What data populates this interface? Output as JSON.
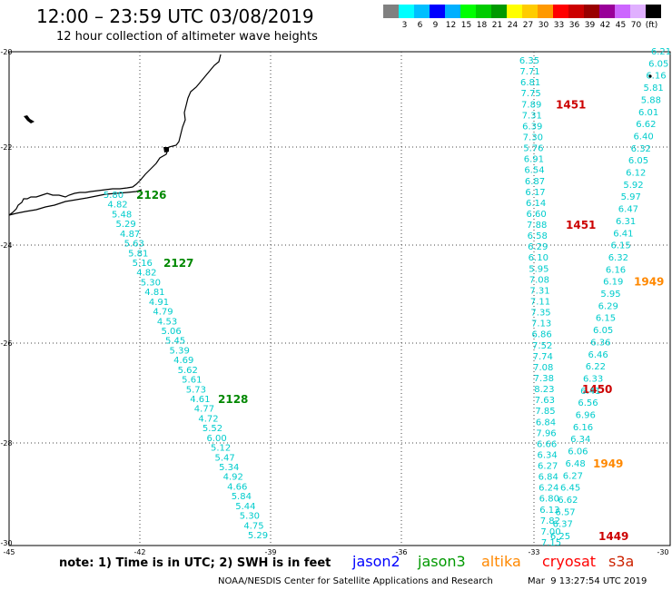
{
  "title": "12:00 – 23:59 UTC 03/08/2019",
  "subtitle": "12 hour collection of altimeter wave heights",
  "legend": {
    "unit": "(ft)",
    "colors": [
      "#808080",
      "#00ffff",
      "#00bfff",
      "#0000ff",
      "#00b0ff",
      "#00ff00",
      "#00cc00",
      "#009900",
      "#ffff00",
      "#ffcc00",
      "#ff9900",
      "#ff0000",
      "#cc0000",
      "#990000",
      "#990099",
      "#cc66ff",
      "#e0b0ff",
      "#000000"
    ],
    "labels": [
      "3",
      "6",
      "9",
      "12",
      "15",
      "18",
      "21",
      "24",
      "27",
      "30",
      "33",
      "36",
      "39",
      "42",
      "45",
      "70"
    ]
  },
  "axes": {
    "x_ticks": [
      "-45",
      "-42",
      "-39",
      "-36",
      "-33",
      "-30"
    ],
    "y_ticks": [
      "-20",
      "-22",
      "-24",
      "-26",
      "-28",
      "-30"
    ]
  },
  "tracks": [
    {
      "satellite": "jason3",
      "color": "#00cccc",
      "values": [
        "5.80",
        "4.82",
        "5.48",
        "5.29",
        "4.87",
        "5.63",
        "5.81",
        "5.16",
        "4.82",
        "5.30",
        "4.81",
        "4.91",
        "4.79",
        "4.53",
        "5.06",
        "5.45",
        "5.39",
        "4.69",
        "5.62",
        "5.61",
        "5.73",
        "4.61",
        "4.77",
        "4.72",
        "5.52",
        "6.00",
        "5.12",
        "5.47",
        "5.34",
        "4.92",
        "4.66",
        "5.84",
        "5.44",
        "5.30",
        "4.75",
        "5.29"
      ],
      "time_labels": [
        {
          "text": "2126",
          "color": "#008800",
          "index": 0
        },
        {
          "text": "2127",
          "color": "#008800",
          "index": 7
        },
        {
          "text": "2128",
          "color": "#008800",
          "index": 21
        }
      ]
    },
    {
      "satellite": "cryosat",
      "color": "#00cccc",
      "values": [
        "6.35",
        "7.71",
        "6.81",
        "7.75",
        "7.89",
        "7.31",
        "6.39",
        "7.30",
        "5.76",
        "6.91",
        "6.54",
        "6.87",
        "6.17",
        "6.14",
        "6.60",
        "7.88",
        "6.58",
        "6.29",
        "6.10",
        "5.95",
        "7.08",
        "7.31",
        "7.11",
        "7.35",
        "7.13",
        "6.86",
        "7.52",
        "7.74",
        "7.08",
        "7.38",
        "8.23",
        "7.63",
        "7.85",
        "6.84",
        "7.96",
        "6.66",
        "6.34",
        "6.27",
        "6.84",
        "6.24",
        "6.80",
        "6.13",
        "7.82",
        "7.00",
        "7.15"
      ],
      "time_labels": [
        {
          "text": "1451",
          "color": "#cc0000",
          "index": 4
        },
        {
          "text": "1451",
          "color": "#cc0000",
          "index": 15
        },
        {
          "text": "1450",
          "color": "#cc0000",
          "index": 30
        }
      ]
    },
    {
      "satellite": "s3a",
      "color": "#00cccc",
      "values": [
        "6.21",
        "6.05",
        "6.16",
        "5.81",
        "5.88",
        "6.01",
        "6.62",
        "6.40",
        "6.32",
        "6.05",
        "6.12",
        "5.92",
        "5.97",
        "6.47",
        "6.31",
        "6.41",
        "6.15",
        "6.32",
        "6.16",
        "6.19",
        "5.95",
        "6.29",
        "6.15",
        "6.05",
        "6.36",
        "6.46",
        "6.22",
        "6.33",
        "6.41",
        "6.56",
        "6.96",
        "6.16",
        "6.34",
        "6.06",
        "6.48",
        "6.27",
        "6.45",
        "6.62",
        "6.57",
        "6.37",
        "6.25"
      ],
      "time_labels": [
        {
          "text": "1949",
          "color": "#ff8800",
          "index": 19
        },
        {
          "text": "1949",
          "color": "#ff8800",
          "index": 34
        },
        {
          "text": "1449",
          "color": "#cc0000",
          "index": 40
        }
      ]
    }
  ],
  "footnote": "note:  1) Time is in UTC;  2) SWH is in feet",
  "satellites": [
    {
      "name": "jason2",
      "color": "#0000ff"
    },
    {
      "name": "jason3",
      "color": "#009900"
    },
    {
      "name": "altika",
      "color": "#ff8800"
    },
    {
      "name": "cryosat",
      "color": "#ff0000"
    },
    {
      "name": "s3a",
      "color": "#cc2200"
    }
  ],
  "credit": "NOAA/NESDIS Center for Satellite Applications and Research",
  "timestamp": "Mar  9 13:27:54 UTC 2019"
}
